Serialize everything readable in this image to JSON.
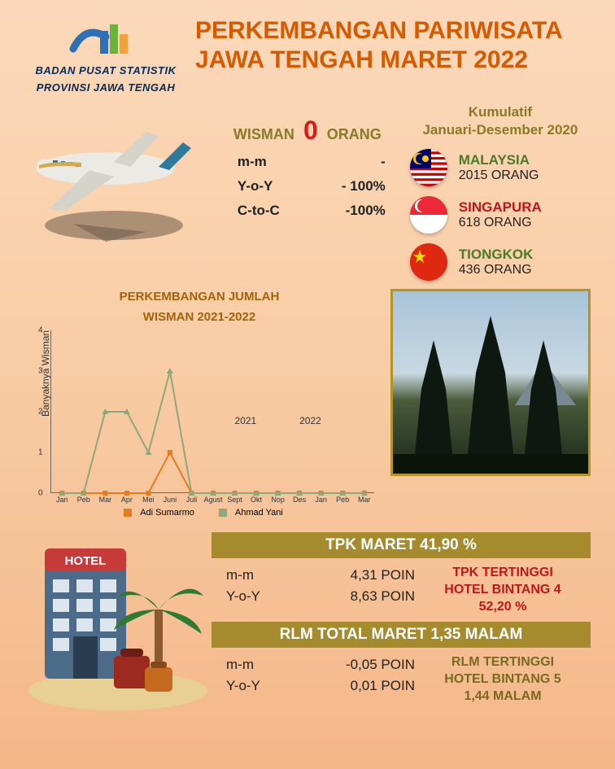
{
  "header": {
    "org_line1": "BADAN PUSAT STATISTIK",
    "org_line2": "PROVINSI JAWA TENGAH",
    "title_line1": "PERKEMBANGAN PARIWISATA",
    "title_line2": "JAWA TENGAH  MARET 2022",
    "title_color": "#d65a00",
    "logo_colors": [
      "#2f6fb3",
      "#6bb33a",
      "#f2a23a"
    ]
  },
  "wisman": {
    "label_left": "WISMAN",
    "value": "0",
    "label_right": "ORANG",
    "label_color": "#8a7a28",
    "value_color": "#d71b1b",
    "metrics": [
      {
        "label": "m-m",
        "value": "-"
      },
      {
        "label": "Y-o-Y",
        "value": "- 100%"
      },
      {
        "label": "C-to-C",
        "value": "-100%"
      }
    ]
  },
  "cumulative": {
    "title_line1": "Kumulatif",
    "title_line2": "Januari-Desember 2020",
    "title_color": "#8a7a28",
    "countries": [
      {
        "name": "MALAYSIA",
        "value": "2015 ORANG",
        "name_color": "#4a7a2a",
        "flag": "malaysia"
      },
      {
        "name": "SINGAPURA",
        "value": "618 ORANG",
        "name_color": "#c1161b",
        "flag": "singapore"
      },
      {
        "name": "TIONGKOK",
        "value": "436 ORANG",
        "name_color": "#4a7a2a",
        "flag": "china"
      }
    ]
  },
  "chart": {
    "title_line1": "PERKEMBANGAN JUMLAH",
    "title_line2": "WISMAN 2021-2022",
    "title_color": "#a4620a",
    "ylabel": "Banyaknya Wisman",
    "ylim": [
      0,
      4
    ],
    "yticks": [
      0,
      1,
      2,
      3,
      4
    ],
    "x_categories": [
      "Jan",
      "Peb",
      "Mar",
      "Apr",
      "Mei",
      "Juni",
      "Juli",
      "Agust",
      "Sept",
      "Okt",
      "Nop",
      "Des",
      "Jan",
      "Peb",
      "Mar"
    ],
    "year_labels": [
      {
        "text": "2021",
        "x_index": 8
      },
      {
        "text": "2022",
        "x_index": 11
      }
    ],
    "series": [
      {
        "name": "Adi Sumarmo",
        "color": "#e57c1f",
        "marker": "square",
        "values": [
          0,
          0,
          0,
          0,
          0,
          1,
          0,
          0,
          0,
          0,
          0,
          0,
          0,
          0,
          0
        ]
      },
      {
        "name": "Ahmad Yani",
        "color": "#8fa77a",
        "marker": "triangle",
        "values": [
          0,
          0,
          2,
          2,
          1,
          3,
          0,
          0,
          0,
          0,
          0,
          0,
          0,
          0,
          0
        ]
      }
    ],
    "background_color": "transparent",
    "grid_color": "#666666"
  },
  "tpk": {
    "band_text": "TPK MARET 41,90 %",
    "band_bg": "#a58a2e",
    "rows": [
      {
        "label": "m-m",
        "value": "4,31  POIN"
      },
      {
        "label": "Y-o-Y",
        "value": "8,63  POIN"
      }
    ],
    "highlight_l1": "TPK TERTINGGI",
    "highlight_l2": "HOTEL BINTANG  4",
    "highlight_l3": "52,20 %",
    "highlight_color": "#c1161b"
  },
  "rlm": {
    "band_text": "RLM TOTAL MARET 1,35 MALAM",
    "band_bg": "#a58a2e",
    "rows": [
      {
        "label": "m-m",
        "value": "-0,05 POIN"
      },
      {
        "label": "Y-o-Y",
        "value": "0,01 POIN"
      }
    ],
    "highlight_l1": "RLM TERTINGGI",
    "highlight_l2": "HOTEL BINTANG 5",
    "highlight_l3": "1,44 MALAM",
    "highlight_color": "#7a6a20"
  }
}
